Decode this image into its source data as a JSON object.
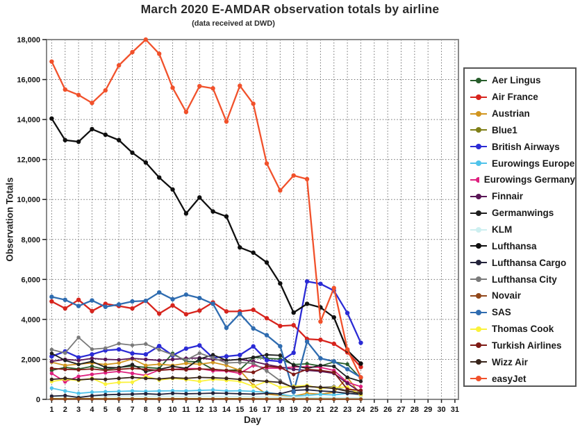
{
  "chart_data": {
    "type": "line",
    "title": "March 2020 E-AMDAR observation totals by airline",
    "subtitle": "(data received at DWD)",
    "xlabel": "Day",
    "ylabel": "Observation Totals",
    "xlim": [
      1,
      31
    ],
    "ylim": [
      0,
      18000
    ],
    "x_ticks": [
      1,
      2,
      3,
      4,
      5,
      6,
      7,
      8,
      9,
      10,
      11,
      12,
      13,
      14,
      15,
      16,
      17,
      18,
      19,
      20,
      21,
      22,
      23,
      24,
      25,
      26,
      27,
      28,
      29,
      30,
      31
    ],
    "y_ticks": [
      0,
      2000,
      4000,
      6000,
      8000,
      10000,
      12000,
      14000,
      16000,
      18000
    ],
    "grid": "dashed-both-axes",
    "legend_position": "right",
    "x": [
      1,
      2,
      3,
      4,
      5,
      6,
      7,
      8,
      9,
      10,
      11,
      12,
      13,
      14,
      15,
      16,
      17,
      18,
      19,
      20,
      21,
      22,
      23,
      24
    ],
    "series": [
      {
        "name": "Aer Lingus",
        "color": "#275d2b",
        "values": [
          1450,
          1600,
          1520,
          1650,
          1500,
          1600,
          1660,
          1600,
          1550,
          2300,
          1900,
          1870,
          1500,
          1450,
          1480,
          2100,
          2050,
          2020,
          1740,
          1780,
          1670,
          1870,
          1760,
          1050
        ]
      },
      {
        "name": "Air France",
        "color": "#d7241d",
        "values": [
          4900,
          4550,
          4980,
          4420,
          4780,
          4670,
          4550,
          4930,
          4290,
          4700,
          4260,
          4440,
          4850,
          4400,
          4400,
          4480,
          4060,
          3670,
          3710,
          3020,
          2980,
          2780,
          2350,
          1620
        ]
      },
      {
        "name": "Austrian",
        "color": "#d1951f",
        "values": [
          1860,
          1700,
          1760,
          1820,
          1740,
          1820,
          2020,
          1700,
          1760,
          1700,
          1800,
          1760,
          1850,
          1700,
          1450,
          700,
          260,
          200,
          160,
          300,
          260,
          350,
          1100,
          210
        ]
      },
      {
        "name": "Blue1",
        "color": "#7f7f17",
        "values": [
          40,
          35,
          40,
          40,
          35,
          40,
          40,
          40,
          35,
          40,
          40,
          40,
          35,
          40,
          40,
          35,
          30,
          30,
          25,
          30,
          30,
          25,
          30,
          25
        ]
      },
      {
        "name": "British Airways",
        "color": "#2b2bd5",
        "values": [
          2150,
          2400,
          2100,
          2250,
          2450,
          2500,
          2300,
          2250,
          2670,
          2200,
          2540,
          2700,
          2080,
          2150,
          2220,
          2650,
          1960,
          1900,
          2330,
          5900,
          5780,
          5440,
          4320,
          2830
        ]
      },
      {
        "name": "Eurowings Europe",
        "color": "#4fc3ea",
        "values": [
          560,
          420,
          300,
          360,
          380,
          400,
          420,
          400,
          420,
          430,
          420,
          450,
          470,
          420,
          430,
          400,
          350,
          250,
          160,
          200,
          250,
          220,
          300,
          240
        ]
      },
      {
        "name": "Eurowings Germany",
        "color": "#de1f7e",
        "values": [
          1300,
          880,
          1150,
          1250,
          1330,
          1400,
          1300,
          1200,
          1470,
          1500,
          1540,
          1540,
          1430,
          1420,
          1300,
          1700,
          1560,
          1560,
          1620,
          1630,
          1600,
          1450,
          850,
          640
        ]
      },
      {
        "name": "Finnair",
        "color": "#591656",
        "values": [
          1900,
          2000,
          1950,
          2050,
          2000,
          1980,
          2050,
          2000,
          1950,
          2000,
          2050,
          2070,
          2000,
          1950,
          2000,
          1900,
          1740,
          1620,
          1500,
          1450,
          1400,
          1300,
          800,
          360
        ]
      },
      {
        "name": "Germanwings",
        "color": "#1f1f1f",
        "values": [
          2300,
          1950,
          1750,
          1900,
          1600,
          1580,
          1740,
          1400,
          1500,
          1650,
          1550,
          2020,
          2230,
          1950,
          2000,
          2100,
          2230,
          2200,
          1700,
          1550,
          1700,
          1650,
          1100,
          900
        ]
      },
      {
        "name": "KLM",
        "color": "#cdeff0",
        "values": [
          150,
          140,
          150,
          160,
          150,
          150,
          160,
          150,
          150,
          160,
          150,
          160,
          150,
          150,
          140,
          130,
          120,
          110,
          100,
          100,
          90,
          90,
          80,
          80
        ]
      },
      {
        "name": "Lufthansa",
        "color": "#0f0f0f",
        "values": [
          14050,
          12970,
          12890,
          13520,
          13240,
          12970,
          12340,
          11850,
          11100,
          10500,
          9300,
          10100,
          9400,
          9150,
          7600,
          7340,
          6850,
          5800,
          4340,
          4780,
          4600,
          4100,
          2450,
          1790
        ]
      },
      {
        "name": "Lufthansa Cargo",
        "color": "#23233a",
        "values": [
          160,
          190,
          90,
          180,
          230,
          250,
          260,
          280,
          250,
          300,
          280,
          290,
          310,
          300,
          280,
          260,
          300,
          280,
          450,
          480,
          420,
          380,
          300,
          250
        ]
      },
      {
        "name": "Lufthansa City",
        "color": "#7a7a7a",
        "values": [
          2490,
          2320,
          3100,
          2510,
          2560,
          2790,
          2710,
          2770,
          2480,
          2230,
          1970,
          2310,
          2080,
          1820,
          1850,
          1800,
          1420,
          930,
          560,
          650,
          600,
          640,
          420,
          350
        ]
      },
      {
        "name": "Novair",
        "color": "#91471a",
        "values": [
          20,
          15,
          20,
          20,
          15,
          20,
          20,
          20,
          15,
          20,
          20,
          15,
          20,
          20,
          15,
          20,
          15,
          15,
          10,
          15,
          10,
          10,
          10,
          10
        ]
      },
      {
        "name": "SAS",
        "color": "#2f6cb0",
        "values": [
          5130,
          4980,
          4670,
          4950,
          4630,
          4750,
          4900,
          4930,
          5350,
          5010,
          5240,
          5070,
          4780,
          3580,
          4290,
          3550,
          3210,
          2660,
          370,
          2890,
          2050,
          1900,
          1510,
          1100
        ]
      },
      {
        "name": "Thomas Cook",
        "color": "#fbf23a",
        "values": [
          890,
          1000,
          950,
          1050,
          760,
          850,
          860,
          1160,
          970,
          1050,
          990,
          900,
          1000,
          950,
          900,
          650,
          900,
          600,
          650,
          700,
          550,
          600,
          610,
          240
        ]
      },
      {
        "name": "Turkish Airlines",
        "color": "#7e1a15",
        "values": [
          1550,
          1500,
          1480,
          1520,
          1450,
          1500,
          1550,
          1500,
          1450,
          1500,
          1480,
          1520,
          1500,
          1450,
          1400,
          1350,
          1650,
          1600,
          1250,
          1500,
          1450,
          1350,
          500,
          450
        ]
      },
      {
        "name": "Wizz Air",
        "color": "#38251b",
        "values": [
          1000,
          1050,
          980,
          1020,
          1000,
          1050,
          1100,
          1050,
          1020,
          1080,
          1050,
          1100,
          1080,
          1050,
          1000,
          950,
          900,
          850,
          600,
          650,
          600,
          550,
          400,
          300
        ]
      },
      {
        "name": "easyJet",
        "color": "#f1512b",
        "values": [
          16900,
          15500,
          15230,
          14830,
          15460,
          16710,
          17370,
          18000,
          17290,
          15590,
          14380,
          15670,
          15560,
          13900,
          15690,
          14790,
          11800,
          10450,
          11200,
          11020,
          3890,
          5570,
          2500,
          1100
        ]
      }
    ]
  }
}
